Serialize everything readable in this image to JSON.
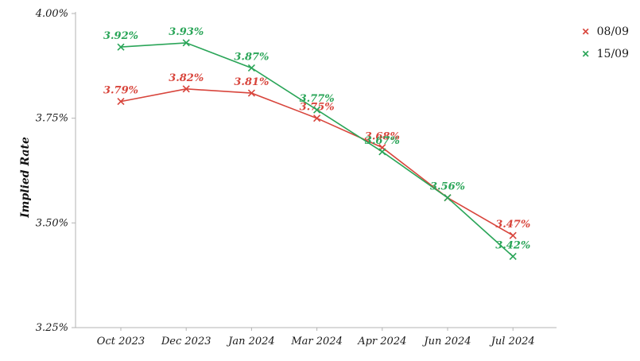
{
  "chart_data": {
    "type": "line",
    "x": [
      "Oct 2023",
      "Dec 2023",
      "Jan 2024",
      "Mar 2024",
      "Apr 2024",
      "Jun 2024",
      "Jul 2024"
    ],
    "series": [
      {
        "name": "08/09",
        "color": "#d8453c",
        "marker": "x",
        "values": [
          3.79,
          3.82,
          3.81,
          3.75,
          3.68,
          3.56,
          3.47
        ],
        "point_labels": [
          "3.79%",
          "3.82%",
          "3.81%",
          "3.75%",
          "3.68%",
          "",
          "3.47%"
        ]
      },
      {
        "name": "15/09",
        "color": "#2aa558",
        "marker": "x",
        "values": [
          3.92,
          3.93,
          3.87,
          3.77,
          3.67,
          3.56,
          3.42
        ],
        "point_labels": [
          "3.92%",
          "3.93%",
          "3.87%",
          "3.77%",
          "3.67%",
          "3.56%",
          "3.42%"
        ]
      }
    ],
    "title": "",
    "xlabel": "",
    "ylabel": "Implied Rate",
    "ylim": [
      3.25,
      4.0
    ],
    "ytick_values": [
      3.25,
      3.5,
      3.75,
      4.0
    ],
    "ytick_labels": [
      "3.25%",
      "3.50%",
      "3.75%",
      "4.00%"
    ],
    "grid": false,
    "legend_position": "upper right"
  }
}
